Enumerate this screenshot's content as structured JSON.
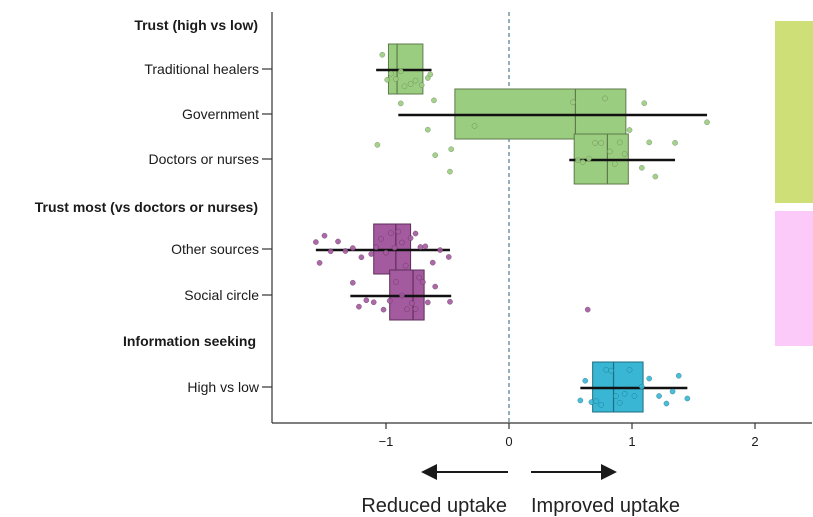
{
  "chart_data": {
    "type": "box",
    "xlim": [
      -1.95,
      2.45
    ],
    "x_ticks": [
      -1,
      0,
      1,
      2
    ],
    "x_tick_labels": [
      "−1",
      "0",
      "1",
      "2"
    ],
    "reference_line": 0,
    "groups": [
      {
        "label": "Trust (high vs low)",
        "color": "#9bcd80",
        "stroke": "#5e7a4a",
        "band_color": "#cfdf78",
        "rows": [
          {
            "label": "Traditional healers",
            "q1": -0.98,
            "median": -0.91,
            "q3": -0.7,
            "whisker_low": -1.08,
            "whisker_high": -0.63,
            "points": [
              -1.03,
              -0.99,
              -0.96,
              -0.92,
              -0.88,
              -0.85,
              -0.8,
              -0.76,
              -0.71,
              -0.66,
              -0.64
            ]
          },
          {
            "label": "Government",
            "q1": -0.44,
            "median": 0.54,
            "q3": 0.95,
            "whisker_low": -0.9,
            "whisker_high": 1.61,
            "points": [
              -0.88,
              -0.66,
              -0.61,
              -0.28,
              0.52,
              0.78,
              0.98,
              1.1,
              1.61
            ]
          },
          {
            "label": "Doctors or nurses",
            "q1": 0.53,
            "median": 0.8,
            "q3": 0.97,
            "whisker_low": 0.49,
            "whisker_high": 1.35,
            "points": [
              -1.07,
              -0.6,
              -0.48,
              -0.47,
              0.56,
              0.6,
              0.65,
              0.7,
              0.75,
              0.82,
              0.86,
              0.9,
              0.94,
              1.08,
              1.14,
              1.19,
              1.35
            ]
          }
        ]
      },
      {
        "label": "Trust most (vs doctors or nurses)",
        "color": "#a35a9e",
        "stroke": "#5e2f5a",
        "band_color": "#fccaf8",
        "rows": [
          {
            "label": "Other sources",
            "q1": -1.1,
            "median": -0.92,
            "q3": -0.8,
            "whisker_low": -1.57,
            "whisker_high": -0.48,
            "points": [
              -1.57,
              -1.54,
              -1.5,
              -1.45,
              -1.39,
              -1.33,
              -1.27,
              -1.2,
              -1.12,
              -1.08,
              -1.04,
              -1.0,
              -0.96,
              -0.93,
              -0.9,
              -0.87,
              -0.84,
              -0.8,
              -0.76,
              -0.72,
              -0.68,
              -0.62,
              -0.56,
              -0.49
            ]
          },
          {
            "label": "Social circle",
            "q1": -0.97,
            "median": -0.78,
            "q3": -0.69,
            "whisker_low": -1.29,
            "whisker_high": -0.47,
            "points": [
              -1.27,
              -1.22,
              -1.16,
              -1.1,
              -1.02,
              -0.97,
              -0.92,
              -0.87,
              -0.83,
              -0.79,
              -0.76,
              -0.73,
              -0.7,
              -0.66,
              -0.6,
              -0.48,
              0.64
            ]
          }
        ]
      },
      {
        "label": "Information seeking",
        "color": "#38b6d4",
        "stroke": "#1c6f82",
        "band_color": null,
        "rows": [
          {
            "label": "High vs low",
            "q1": 0.68,
            "median": 0.85,
            "q3": 1.09,
            "whisker_low": 0.58,
            "whisker_high": 1.45,
            "points": [
              0.58,
              0.62,
              0.67,
              0.71,
              0.75,
              0.79,
              0.83,
              0.87,
              0.9,
              0.94,
              0.98,
              1.02,
              1.08,
              1.14,
              1.22,
              1.28,
              1.33,
              1.38,
              1.45
            ]
          }
        ]
      }
    ]
  },
  "direction": {
    "left_label": "Reduced uptake",
    "right_label": "Improved uptake"
  }
}
